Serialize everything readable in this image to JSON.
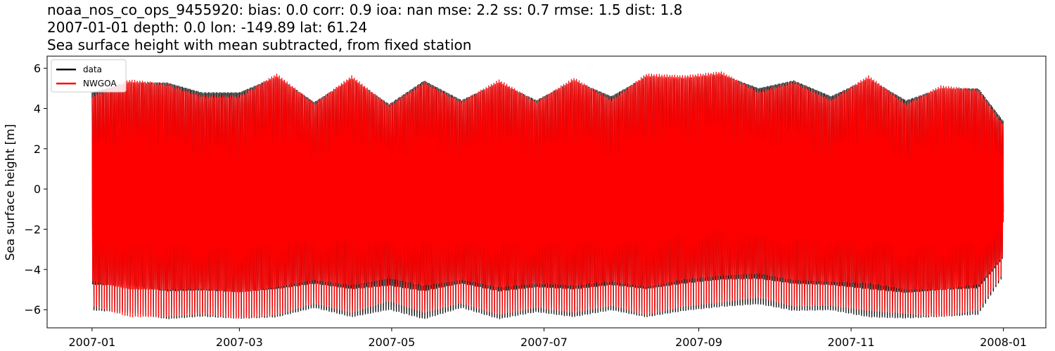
{
  "chart_data": {
    "type": "line",
    "title_lines": [
      "noaa_nos_co_ops_9455920: bias: 0.0  corr: 0.9  ioa: nan  mse: 2.2  ss: 0.7  rmse: 1.5  dist: 1.8",
      "2007-01-01 depth: 0.0 lon: -149.89 lat: 61.24",
      "Sea surface height with mean subtracted, from fixed station"
    ],
    "xlabel": "",
    "ylabel": "Sea surface height [m]",
    "xlim": [
      "2006-12-14",
      "2008-01-18"
    ],
    "ylim": [
      -6.9,
      6.6
    ],
    "x_ticks": [
      "2007-01",
      "2007-03",
      "2007-05",
      "2007-07",
      "2007-09",
      "2007-11",
      "2008-01"
    ],
    "y_ticks": [
      -6,
      -4,
      -2,
      0,
      2,
      4,
      6
    ],
    "legend_position": "top-left",
    "grid": false,
    "series": [
      {
        "name": "data",
        "color": "#000000",
        "x_start": "2007-01-01",
        "x_end": "2008-01-01",
        "envelope": {
          "x": [
            "2007-01-01",
            "2007-01-16",
            "2007-01-31",
            "2007-02-14",
            "2007-03-01",
            "2007-03-16",
            "2007-03-31",
            "2007-04-15",
            "2007-04-30",
            "2007-05-14",
            "2007-05-29",
            "2007-06-13",
            "2007-06-28",
            "2007-07-13",
            "2007-07-28",
            "2007-08-11",
            "2007-08-26",
            "2007-09-10",
            "2007-09-25",
            "2007-10-09",
            "2007-10-24",
            "2007-11-08",
            "2007-11-23",
            "2007-12-07",
            "2007-12-22",
            "2008-01-01"
          ],
          "max": [
            5.0,
            5.5,
            5.5,
            5.0,
            5.0,
            5.8,
            4.5,
            5.7,
            4.4,
            5.6,
            4.6,
            5.5,
            4.6,
            5.6,
            4.8,
            5.8,
            5.7,
            5.9,
            5.2,
            5.6,
            4.8,
            5.7,
            4.6,
            5.2,
            5.2,
            3.5
          ],
          "min": [
            -5.6,
            -5.7,
            -6.0,
            -5.9,
            -6.0,
            -5.9,
            -5.5,
            -5.9,
            -5.6,
            -6.0,
            -5.5,
            -6.0,
            -5.7,
            -5.9,
            -5.6,
            -5.9,
            -5.6,
            -5.4,
            -5.3,
            -5.6,
            -5.6,
            -5.9,
            -6.0,
            -5.9,
            -5.8,
            -4.0
          ]
        }
      },
      {
        "name": "NWGOA",
        "color": "#ff0000",
        "x_start": "2007-01-01",
        "x_end": "2008-01-01",
        "envelope": {
          "x": [
            "2007-01-01",
            "2007-01-16",
            "2007-01-31",
            "2007-02-14",
            "2007-03-01",
            "2007-03-16",
            "2007-03-31",
            "2007-04-15",
            "2007-04-30",
            "2007-05-14",
            "2007-05-29",
            "2007-06-13",
            "2007-06-28",
            "2007-07-13",
            "2007-07-28",
            "2007-08-11",
            "2007-08-26",
            "2007-09-10",
            "2007-09-25",
            "2007-10-09",
            "2007-10-24",
            "2007-11-08",
            "2007-11-23",
            "2007-12-07",
            "2007-12-22",
            "2008-01-01"
          ],
          "max": [
            4.8,
            5.6,
            5.4,
            4.8,
            4.8,
            5.9,
            4.4,
            5.8,
            4.3,
            5.5,
            4.5,
            5.6,
            4.5,
            5.7,
            4.6,
            5.9,
            5.8,
            6.0,
            5.0,
            5.5,
            4.6,
            5.8,
            4.4,
            5.3,
            5.1,
            3.3
          ],
          "min": [
            -5.4,
            -5.9,
            -5.9,
            -5.8,
            -6.0,
            -5.8,
            -5.3,
            -5.7,
            -5.2,
            -5.7,
            -5.3,
            -5.8,
            -5.5,
            -5.7,
            -5.4,
            -5.8,
            -5.4,
            -5.2,
            -5.0,
            -5.4,
            -5.4,
            -5.6,
            -5.8,
            -5.9,
            -5.6,
            -3.9
          ]
        }
      }
    ]
  }
}
